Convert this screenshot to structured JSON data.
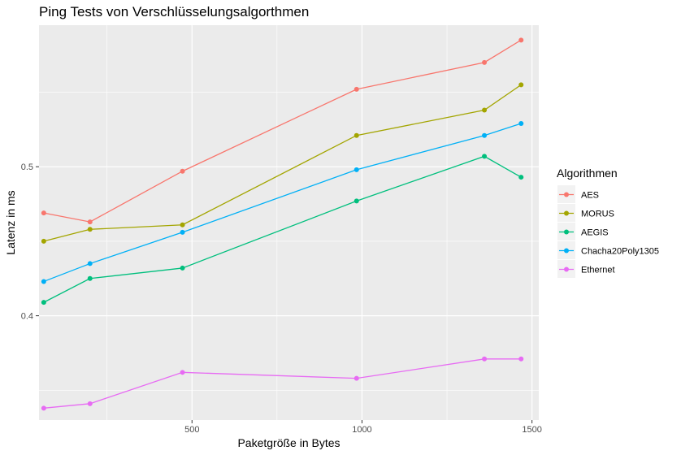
{
  "chart_data": {
    "type": "line",
    "title": "Ping Tests von Verschlüsselungsalgorthmen",
    "xlabel": "Paketgröße in Bytes",
    "ylabel": "Latenz in ms",
    "xlim": [
      50,
      1520
    ],
    "ylim": [
      0.33,
      0.595
    ],
    "x_ticks": [
      500,
      1000,
      1500
    ],
    "x_tick_labels": [
      "500",
      "1000",
      "1500"
    ],
    "x_minor_ticks": [
      250,
      750,
      1250
    ],
    "y_ticks": [
      0.4,
      0.5
    ],
    "y_tick_labels": [
      "0.4",
      "0.5"
    ],
    "y_minor_ticks": [
      0.35,
      0.45,
      0.55
    ],
    "grid": true,
    "background": "#EBEBEB",
    "legend": {
      "title": "Algorithmen",
      "position": "right"
    },
    "x": [
      64,
      200,
      472,
      984,
      1360,
      1468
    ],
    "series": [
      {
        "name": "AES",
        "color": "#F8766D",
        "values": [
          0.469,
          0.463,
          0.497,
          0.552,
          0.57,
          0.585
        ]
      },
      {
        "name": "MORUS",
        "color": "#A3A500",
        "values": [
          0.45,
          0.458,
          0.461,
          0.521,
          0.538,
          0.555
        ]
      },
      {
        "name": "AEGIS",
        "color": "#00BF7D",
        "values": [
          0.409,
          0.425,
          0.432,
          0.477,
          0.507,
          0.493
        ]
      },
      {
        "name": "Chacha20Poly1305",
        "color": "#00B0F6",
        "values": [
          0.423,
          0.435,
          0.456,
          0.498,
          0.521,
          0.529
        ]
      },
      {
        "name": "Ethernet",
        "color": "#E76BF3",
        "values": [
          0.338,
          0.341,
          0.362,
          0.358,
          0.371,
          0.371
        ]
      }
    ]
  }
}
